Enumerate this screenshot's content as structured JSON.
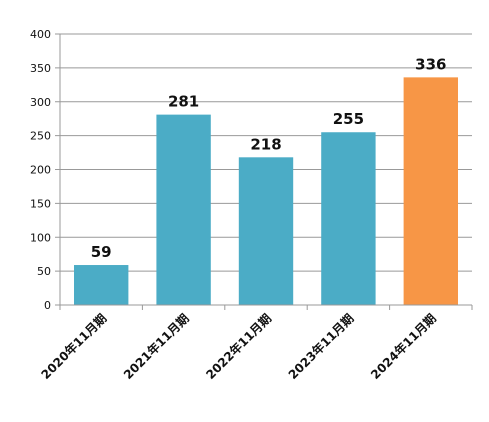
{
  "chart_data": {
    "type": "bar",
    "title": "",
    "xlabel": "",
    "ylabel": "",
    "categories": [
      "2020年11月期",
      "2021年11月期",
      "2022年11月期",
      "2023年11月期",
      "2024年11月期"
    ],
    "values": [
      59,
      281,
      218,
      255,
      336
    ],
    "ylim": [
      0,
      400
    ],
    "yticks": [
      "0",
      "50",
      "100",
      "150",
      "200",
      "250",
      "300",
      "350",
      "400"
    ],
    "data_labels": [
      "59",
      "281",
      "218",
      "255",
      "336"
    ],
    "grid": true,
    "legend": "none",
    "colors": {
      "bar": "#4bacc6",
      "highlight_bar": "#f79646",
      "grid": "#999999",
      "axis": "#999999"
    },
    "highlight_index": 4
  }
}
